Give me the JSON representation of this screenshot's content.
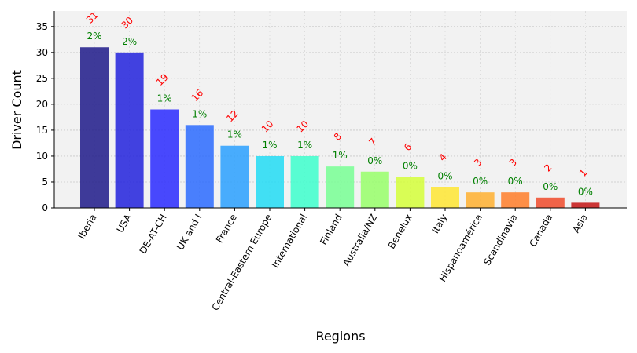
{
  "chart_data": {
    "type": "bar",
    "title": "",
    "xlabel": "Regions",
    "ylabel": "Driver Count",
    "categories": [
      "Iberia",
      "USA",
      "DE-AT-CH",
      "UK and I",
      "France",
      "Central-Eastern Europe",
      "International",
      "Finland",
      "Australia/NZ",
      "Benelux",
      "Italy",
      "Hispanoamérica",
      "Scandinavia",
      "Canada",
      "Asia"
    ],
    "values": [
      31,
      30,
      19,
      16,
      12,
      10,
      10,
      8,
      7,
      6,
      4,
      3,
      3,
      2,
      1
    ],
    "count_labels": [
      "31",
      "30",
      "19",
      "16",
      "12",
      "10",
      "10",
      "8",
      "7",
      "6",
      "4",
      "3",
      "3",
      "2",
      "1"
    ],
    "percent_labels": [
      "2%",
      "2%",
      "1%",
      "1%",
      "1%",
      "1%",
      "1%",
      "1%",
      "0%",
      "0%",
      "0%",
      "0%",
      "0%",
      "0%",
      "0%"
    ],
    "bar_colors": [
      "#1f1a8a",
      "#2222dd",
      "#2a2aff",
      "#2b6bff",
      "#2aa0ff",
      "#22dcf5",
      "#3dffcc",
      "#78ff94",
      "#98ff6a",
      "#d5ff3a",
      "#ffe633",
      "#ffb030",
      "#ff7e2a",
      "#f04a2a",
      "#c41414"
    ],
    "yticks": [
      "0",
      "5",
      "10",
      "15",
      "20",
      "25",
      "30",
      "35"
    ],
    "ylim": [
      0,
      38
    ],
    "grid": true,
    "legend": "none",
    "colors": {
      "count_label": "#ff0000",
      "percent_label": "#008000",
      "plot_background": "#f2f2f2",
      "grid": "#c8c8c8"
    }
  }
}
